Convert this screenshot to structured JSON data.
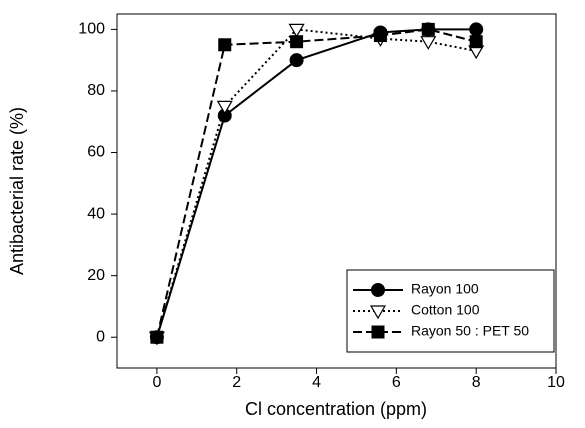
{
  "chart_data": {
    "type": "line",
    "xlabel": "Cl concentration (ppm)",
    "ylabel": "Antibacterial rate (%)",
    "x": [
      0,
      1.7,
      3.5,
      5.6,
      6.8,
      8
    ],
    "series": [
      {
        "name": "Rayon 100",
        "color": "#000000",
        "dash": "solid",
        "marker": "circle",
        "values": [
          0,
          72,
          90,
          99,
          100,
          100
        ]
      },
      {
        "name": "Cotton 100",
        "color": "#000000",
        "dash": "dotted",
        "marker": "triangle-down-open",
        "values": [
          0,
          75,
          100,
          97,
          96,
          93
        ]
      },
      {
        "name": "Rayon 50 : PET 50",
        "color": "#000000",
        "dash": "dashed",
        "marker": "square",
        "values": [
          0,
          95,
          96,
          98,
          100,
          96
        ]
      }
    ],
    "xlim": [
      -1,
      10
    ],
    "xticks": [
      0,
      2,
      4,
      6,
      8,
      10
    ],
    "ylim": [
      -10,
      105
    ],
    "yticks": [
      0,
      20,
      40,
      60,
      80,
      100
    ],
    "legend": "lower right"
  }
}
